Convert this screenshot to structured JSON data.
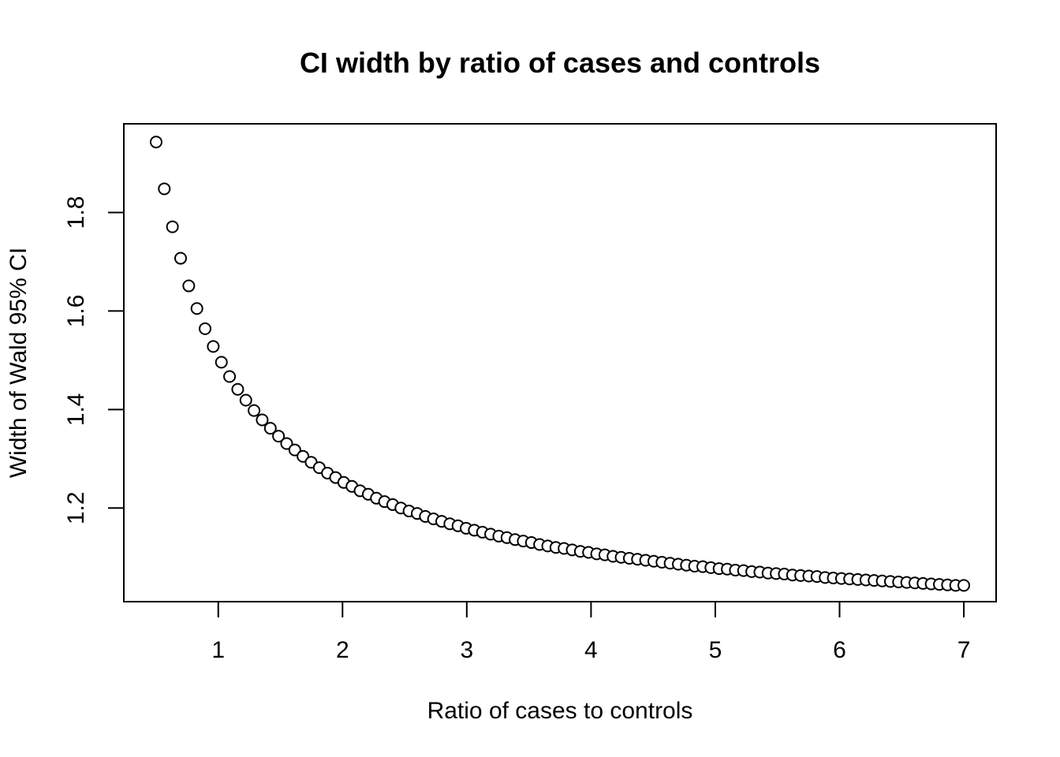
{
  "chart_data": {
    "type": "scatter",
    "title": "CI width by ratio of cases and controls",
    "xlabel": "Ratio of cases to controls",
    "ylabel": "Width of Wald 95% CI",
    "xlim": [
      0.24,
      7.26
    ],
    "ylim": [
      1.01,
      1.98
    ],
    "xticks": [
      1,
      2,
      3,
      4,
      5,
      6,
      7
    ],
    "xtick_labels": [
      "1",
      "2",
      "3",
      "4",
      "5",
      "6",
      "7"
    ],
    "yticks": [
      1.2,
      1.4,
      1.6,
      1.8
    ],
    "ytick_labels": [
      "1.2",
      "1.4",
      "1.6",
      "1.8"
    ],
    "grid": false,
    "legend": "none",
    "marker": "open-circle",
    "x_start": 0.5,
    "x_end": 7.0,
    "x_step": 0.0656566,
    "y": [
      1.943,
      1.848,
      1.771,
      1.707,
      1.651,
      1.605,
      1.564,
      1.528,
      1.496,
      1.467,
      1.441,
      1.419,
      1.398,
      1.379,
      1.362,
      1.346,
      1.331,
      1.318,
      1.305,
      1.293,
      1.282,
      1.271,
      1.262,
      1.252,
      1.244,
      1.235,
      1.228,
      1.22,
      1.213,
      1.207,
      1.2,
      1.194,
      1.189,
      1.183,
      1.178,
      1.173,
      1.168,
      1.164,
      1.159,
      1.155,
      1.151,
      1.147,
      1.143,
      1.14,
      1.136,
      1.133,
      1.13,
      1.126,
      1.123,
      1.12,
      1.118,
      1.115,
      1.112,
      1.11,
      1.107,
      1.105,
      1.102,
      1.1,
      1.098,
      1.096,
      1.094,
      1.092,
      1.09,
      1.088,
      1.086,
      1.084,
      1.082,
      1.081,
      1.079,
      1.077,
      1.076,
      1.074,
      1.073,
      1.071,
      1.07,
      1.068,
      1.067,
      1.066,
      1.064,
      1.063,
      1.062,
      1.061,
      1.059,
      1.058,
      1.057,
      1.056,
      1.055,
      1.054,
      1.053,
      1.052,
      1.051,
      1.05,
      1.049,
      1.048,
      1.047,
      1.046,
      1.045,
      1.044,
      1.043,
      1.043
    ]
  }
}
